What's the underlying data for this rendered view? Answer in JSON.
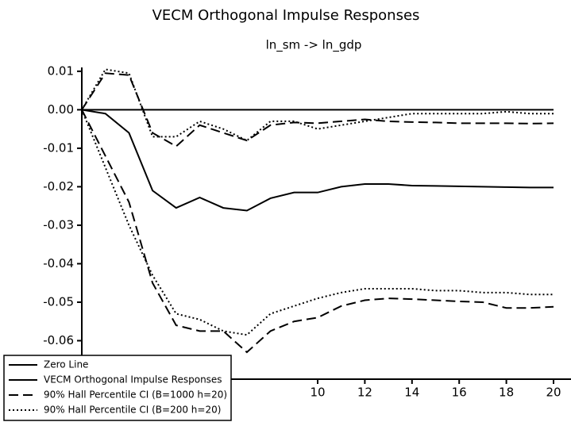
{
  "chart_data": {
    "type": "line",
    "title": "VECM Orthogonal Impulse Responses",
    "subtitle": "ln_sm -> ln_gdp",
    "x": [
      0,
      1,
      2,
      3,
      4,
      5,
      6,
      7,
      8,
      9,
      10,
      11,
      12,
      13,
      14,
      15,
      16,
      17,
      18,
      19,
      20
    ],
    "xlim": [
      0,
      20
    ],
    "xticks": [
      10,
      12,
      14,
      16,
      18,
      20
    ],
    "ylim": [
      -0.07,
      0.011
    ],
    "yticks": [
      {
        "value": 0.01,
        "label": "0.01"
      },
      {
        "value": 0,
        "label": "0.00"
      },
      {
        "value": -0.01,
        "label": "-0.01"
      },
      {
        "value": -0.02,
        "label": "-0.02"
      },
      {
        "value": -0.03,
        "label": "-0.03"
      },
      {
        "value": -0.04,
        "label": "-0.04"
      },
      {
        "value": -0.05,
        "label": "-0.05"
      },
      {
        "value": -0.06,
        "label": "-0.06"
      }
    ],
    "legend": "bottom-left",
    "series": [
      {
        "name": "Zero Line",
        "color": "#000000",
        "style": "solid",
        "values": [
          0,
          0,
          0,
          0,
          0,
          0,
          0,
          0,
          0,
          0,
          0,
          0,
          0,
          0,
          0,
          0,
          0,
          0,
          0,
          0,
          0
        ]
      },
      {
        "name": "VECM Orthogonal Impulse Responses",
        "color": "#000000",
        "style": "solid",
        "values": [
          0,
          -0.001,
          -0.006,
          -0.021,
          -0.0255,
          -0.0228,
          -0.0255,
          -0.0262,
          -0.023,
          -0.0215,
          -0.0215,
          -0.02,
          -0.0193,
          -0.0193,
          -0.0197,
          -0.0198,
          -0.0199,
          -0.02,
          -0.0201,
          -0.0202,
          -0.0202
        ]
      },
      {
        "name": "90% Hall Percentile CI (B=1000 h=20)",
        "color": "#000000",
        "style": "dash",
        "values": [
          0,
          0.0095,
          0.009,
          -0.006,
          -0.0095,
          -0.004,
          -0.006,
          -0.008,
          -0.004,
          -0.0033,
          -0.0035,
          -0.003,
          -0.0025,
          -0.003,
          -0.0032,
          -0.0033,
          -0.0035,
          -0.0035,
          -0.0035,
          -0.0036,
          -0.0035
        ],
        "lower": [
          0,
          -0.012,
          -0.024,
          -0.045,
          -0.056,
          -0.0575,
          -0.0575,
          -0.063,
          -0.0575,
          -0.055,
          -0.054,
          -0.051,
          -0.0495,
          -0.049,
          -0.0492,
          -0.0495,
          -0.0498,
          -0.05,
          -0.0515,
          -0.0515,
          -0.0512
        ]
      },
      {
        "name": "90% Hall Percentile CI (B=200 h=20)",
        "color": "#000000",
        "style": "dot",
        "values": [
          0,
          0.0105,
          0.0095,
          -0.007,
          -0.007,
          -0.003,
          -0.005,
          -0.008,
          -0.003,
          -0.003,
          -0.005,
          -0.004,
          -0.003,
          -0.002,
          -0.001,
          -0.001,
          -0.001,
          -0.001,
          -0.0005,
          -0.001,
          -0.001
        ],
        "lower": [
          0,
          -0.015,
          -0.03,
          -0.043,
          -0.053,
          -0.0545,
          -0.0575,
          -0.0585,
          -0.053,
          -0.051,
          -0.049,
          -0.0475,
          -0.0465,
          -0.0465,
          -0.0465,
          -0.047,
          -0.047,
          -0.0475,
          -0.0475,
          -0.048,
          -0.048
        ]
      }
    ]
  }
}
